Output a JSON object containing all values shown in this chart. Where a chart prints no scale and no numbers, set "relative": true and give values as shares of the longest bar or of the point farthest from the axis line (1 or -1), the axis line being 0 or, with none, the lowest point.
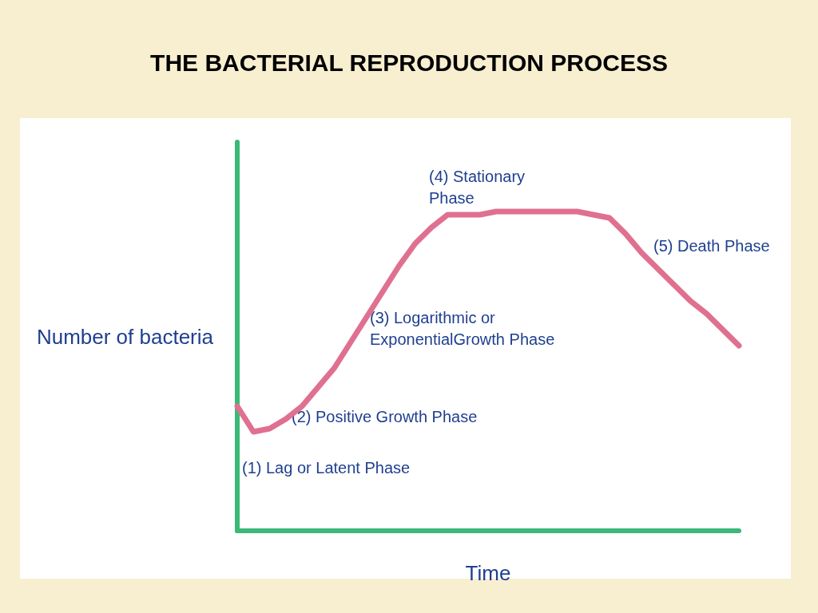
{
  "chart_data": {
    "type": "line",
    "title": "THE BACTERIAL REPRODUCTION PROCESS",
    "xlabel": "Time",
    "ylabel": "Number of bacteria",
    "relative": true,
    "marker": "none",
    "grid": false,
    "categories": [
      null,
      null,
      null,
      null,
      null,
      null,
      null,
      null,
      null,
      null,
      null,
      null,
      null,
      null,
      null,
      null,
      null,
      null,
      null,
      null,
      null,
      null,
      null,
      null,
      null,
      null,
      null,
      null,
      null,
      null,
      null,
      null
    ],
    "series": [
      {
        "color": "#e07090",
        "values": [
          0.39,
          0.31,
          0.32,
          0.35,
          0.39,
          0.45,
          0.51,
          0.59,
          0.67,
          0.75,
          0.83,
          0.9,
          0.95,
          0.99,
          0.99,
          0.99,
          1.0,
          1.0,
          1.0,
          1.0,
          1.0,
          1.0,
          0.99,
          0.98,
          0.93,
          0.87,
          0.82,
          0.77,
          0.72,
          0.68,
          0.63,
          0.58
        ]
      }
    ],
    "annotations": [
      "(1) Lag or Latent Phase",
      "(2) Positive Growth Phase",
      "(3) Logarithmic or ExponentialGrowth Phase",
      "(4) Stationary Phase",
      "(5) Death Phase"
    ]
  }
}
